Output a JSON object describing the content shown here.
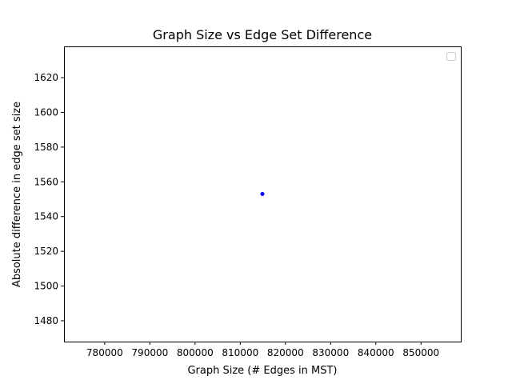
{
  "chart_data": {
    "type": "scatter",
    "title": "Graph Size vs Edge Set Difference",
    "xlabel": "Graph Size (# Edges in MST)",
    "ylabel": "Absolute difference in edge set size",
    "xlim": [
      771000,
      858800
    ],
    "ylim": [
      1468,
      1638
    ],
    "x_ticks": [
      "780000",
      "790000",
      "800000",
      "810000",
      "820000",
      "830000",
      "840000",
      "850000"
    ],
    "x_tick_values": [
      780000,
      790000,
      800000,
      810000,
      820000,
      830000,
      840000,
      850000
    ],
    "y_ticks": [
      "1480",
      "1500",
      "1520",
      "1540",
      "1560",
      "1580",
      "1600",
      "1620"
    ],
    "y_tick_values": [
      1480,
      1500,
      1520,
      1540,
      1560,
      1580,
      1600,
      1620
    ],
    "points": [
      {
        "x": 814900,
        "y": 1553
      }
    ],
    "point_color": "#0000ff",
    "legend": "top-right",
    "legend_entries": [],
    "grid": false
  }
}
